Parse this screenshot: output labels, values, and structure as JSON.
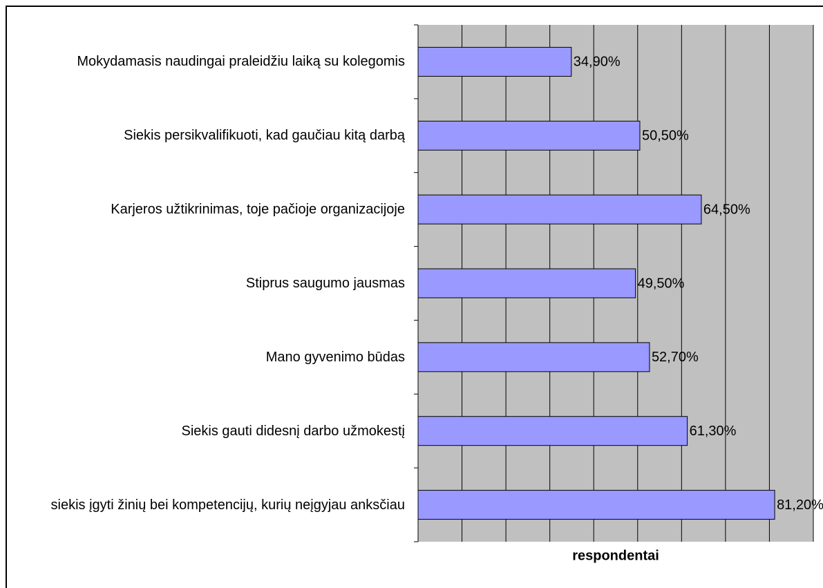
{
  "chart_data": {
    "type": "bar",
    "orientation": "horizontal",
    "categories": [
      "Mokydamasis naudingai praleidžiu laiką su kolegomis",
      "Siekis persikvalifikuoti, kad gaučiau kitą darbą",
      "Karjeros užtikrinimas, toje pačioje organizacijoje",
      "Stiprus saugumo jausmas",
      "Mano gyvenimo būdas",
      "Siekis gauti didesnį darbo užmokestį",
      "siekis įgyti žinių bei kompetencijų, kurių neįgyjau anksčiau"
    ],
    "values": [
      34.9,
      50.5,
      64.5,
      49.5,
      52.7,
      61.3,
      81.2
    ],
    "value_labels": [
      "34,90%",
      "50,50%",
      "64,50%",
      "49,50%",
      "52,70%",
      "61,30%",
      "81,20%"
    ],
    "color": "#9999ff",
    "x_label": "respondentai",
    "xlim": [
      0,
      90
    ],
    "xticks": [
      0,
      10,
      20,
      30,
      40,
      50,
      60,
      70,
      80,
      90
    ],
    "grid": true
  }
}
